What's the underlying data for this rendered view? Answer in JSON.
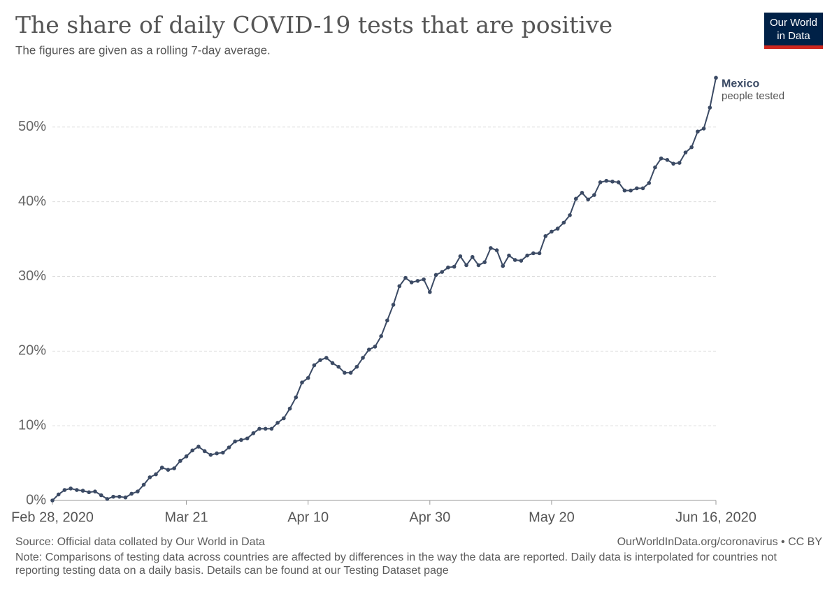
{
  "chart_data": {
    "type": "line",
    "title": "The share of daily COVID-19 tests that are positive",
    "subtitle": "The figures are given as a rolling 7-day average.",
    "logo": [
      "Our World",
      "in Data"
    ],
    "source": "Source: Official data collated by Our World in Data",
    "url": "OurWorldInData.org/coronavirus • CC BY",
    "note": "Note: Comparisons of testing data across countries are affected by differences in the way the data are reported. Daily data is interpolated for countries not reporting testing data on a daily basis. Details can be found at our Testing Dataset page",
    "series_annotation": "people tested",
    "x": [
      "2020-02-28",
      "2020-02-29",
      "2020-03-01",
      "2020-03-02",
      "2020-03-03",
      "2020-03-04",
      "2020-03-05",
      "2020-03-06",
      "2020-03-07",
      "2020-03-08",
      "2020-03-09",
      "2020-03-10",
      "2020-03-11",
      "2020-03-12",
      "2020-03-13",
      "2020-03-14",
      "2020-03-15",
      "2020-03-16",
      "2020-03-17",
      "2020-03-18",
      "2020-03-19",
      "2020-03-20",
      "2020-03-21",
      "2020-03-22",
      "2020-03-23",
      "2020-03-24",
      "2020-03-25",
      "2020-03-26",
      "2020-03-27",
      "2020-03-28",
      "2020-03-29",
      "2020-03-30",
      "2020-03-31",
      "2020-04-01",
      "2020-04-02",
      "2020-04-03",
      "2020-04-04",
      "2020-04-05",
      "2020-04-06",
      "2020-04-07",
      "2020-04-08",
      "2020-04-09",
      "2020-04-10",
      "2020-04-11",
      "2020-04-12",
      "2020-04-13",
      "2020-04-14",
      "2020-04-15",
      "2020-04-16",
      "2020-04-17",
      "2020-04-18",
      "2020-04-19",
      "2020-04-20",
      "2020-04-21",
      "2020-04-22",
      "2020-04-23",
      "2020-04-24",
      "2020-04-25",
      "2020-04-26",
      "2020-04-27",
      "2020-04-28",
      "2020-04-29",
      "2020-04-30",
      "2020-05-01",
      "2020-05-02",
      "2020-05-03",
      "2020-05-04",
      "2020-05-05",
      "2020-05-06",
      "2020-05-07",
      "2020-05-08",
      "2020-05-09",
      "2020-05-10",
      "2020-05-11",
      "2020-05-12",
      "2020-05-13",
      "2020-05-14",
      "2020-05-15",
      "2020-05-16",
      "2020-05-17",
      "2020-05-18",
      "2020-05-19",
      "2020-05-20",
      "2020-05-21",
      "2020-05-22",
      "2020-05-23",
      "2020-05-24",
      "2020-05-25",
      "2020-05-26",
      "2020-05-27",
      "2020-05-28",
      "2020-05-29",
      "2020-05-30",
      "2020-05-31",
      "2020-06-01",
      "2020-06-02",
      "2020-06-03",
      "2020-06-04",
      "2020-06-05",
      "2020-06-06",
      "2020-06-07",
      "2020-06-08",
      "2020-06-09",
      "2020-06-10",
      "2020-06-11",
      "2020-06-12",
      "2020-06-13",
      "2020-06-14",
      "2020-06-15",
      "2020-06-16"
    ],
    "series": [
      {
        "name": "Mexico",
        "color": "#3b4a64",
        "values": [
          0,
          0.8,
          1.4,
          1.6,
          1.4,
          1.3,
          1.1,
          1.2,
          0.7,
          0.2,
          0.5,
          0.5,
          0.4,
          0.9,
          1.2,
          2.1,
          3.1,
          3.5,
          4.4,
          4.1,
          4.3,
          5.3,
          5.9,
          6.7,
          7.2,
          6.6,
          6.1,
          6.3,
          6.4,
          7.1,
          7.9,
          8.1,
          8.3,
          9.0,
          9.6,
          9.6,
          9.6,
          10.4,
          11.0,
          12.3,
          13.8,
          15.8,
          16.4,
          18.1,
          18.8,
          19.1,
          18.4,
          17.9,
          17.1,
          17.1,
          17.9,
          19.1,
          20.2,
          20.6,
          22.0,
          24.1,
          26.2,
          28.7,
          29.8,
          29.2,
          29.4,
          29.6,
          27.9,
          30.2,
          30.6,
          31.2,
          31.3,
          32.7,
          31.5,
          32.6,
          31.5,
          31.9,
          33.8,
          33.5,
          31.4,
          32.8,
          32.2,
          32.1,
          32.8,
          33.1,
          33.1,
          35.4,
          36.0,
          36.4,
          37.2,
          38.2,
          40.4,
          41.2,
          40.3,
          40.9,
          42.6,
          42.8,
          42.7,
          42.6,
          41.5,
          41.5,
          41.8,
          41.8,
          42.5,
          44.6,
          45.8,
          45.6,
          45.1,
          45.2,
          46.6,
          47.3,
          49.4,
          49.8,
          52.6,
          56.6
        ]
      }
    ],
    "xlim": [
      "2020-02-28",
      "2020-06-16"
    ],
    "xticks": [
      {
        "value": "2020-02-28",
        "label": "Feb 28, 2020"
      },
      {
        "value": "2020-03-21",
        "label": "Mar 21"
      },
      {
        "value": "2020-04-10",
        "label": "Apr 10"
      },
      {
        "value": "2020-04-30",
        "label": "Apr 30"
      },
      {
        "value": "2020-05-20",
        "label": "May 20"
      },
      {
        "value": "2020-06-16",
        "label": "Jun 16, 2020"
      }
    ],
    "ylim": [
      0,
      57
    ],
    "yticks": [
      {
        "value": 0,
        "label": "0%"
      },
      {
        "value": 10,
        "label": "10%"
      },
      {
        "value": 20,
        "label": "20%"
      },
      {
        "value": 30,
        "label": "30%"
      },
      {
        "value": 40,
        "label": "40%"
      },
      {
        "value": 50,
        "label": "50%"
      }
    ],
    "grid": true
  }
}
